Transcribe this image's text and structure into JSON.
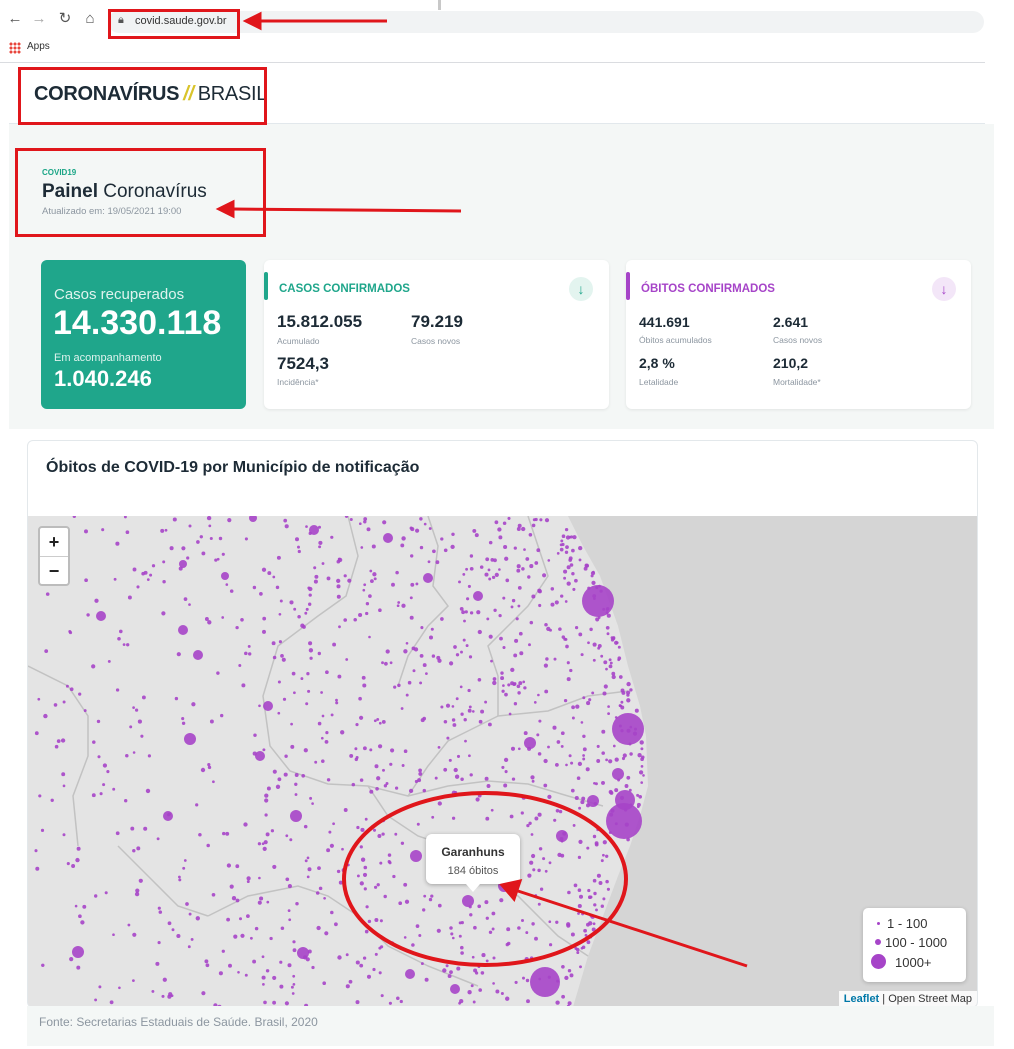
{
  "browser": {
    "url": "covid.saude.gov.br",
    "bookmarks_label": "Apps",
    "icons": [
      "back-icon",
      "forward-icon",
      "reload-icon",
      "home-icon",
      "lock-icon",
      "apps-icon"
    ]
  },
  "header": {
    "brand_main": "CORONAVÍRUS",
    "brand_slash": "//",
    "brand_sub": "BRASIL"
  },
  "page": {
    "eyebrow": "COVID19",
    "title_bold": "Painel",
    "title_rest": "Coronavírus",
    "updated": "Atualizado em: 19/05/2021 19:00"
  },
  "recovered_card": {
    "label": "Casos recuperados",
    "value": "14.330.118",
    "label2": "Em acompanhamento",
    "value2": "1.040.246",
    "color": "#1fa68b"
  },
  "cases_card": {
    "title": "CASOS CONFIRMADOS",
    "accent": "#1fa68b",
    "icon": "arrow-down-icon",
    "acumulado_value": "15.812.055",
    "acumulado_label": "Acumulado",
    "novos_value": "79.219",
    "novos_label": "Casos novos",
    "incidencia_value": "7524,3",
    "incidencia_label": "Incidência*"
  },
  "deaths_card": {
    "title": "ÓBITOS CONFIRMADOS",
    "accent": "#a644c8",
    "icon": "arrow-down-icon",
    "acumulados_value": "441.691",
    "acumulados_label": "Óbitos acumulados",
    "novos_value": "2.641",
    "novos_label": "Casos novos",
    "letalidade_value": "2,8 %",
    "letalidade_label": "Letalidade",
    "mortalidade_value": "210,2",
    "mortalidade_label": "Mortalidade*"
  },
  "map": {
    "title": "Óbitos de COVID-19 por Município de notificação",
    "zoom_in": "+",
    "zoom_out": "−",
    "legend": [
      "1 - 100",
      "100 - 1000",
      "1000+"
    ],
    "tooltip_name": "Garanhuns",
    "tooltip_value": "184 óbitos",
    "attribution_leaflet": "Leaflet",
    "attribution_sep": " | ",
    "attribution_osm": "Open Street Map",
    "marker_color": "#a644c8"
  },
  "footer": {
    "source": "Fonte: Secretarias Estaduais de Saúde. Brasil, 2020"
  },
  "annotation_color": "#e0161b"
}
